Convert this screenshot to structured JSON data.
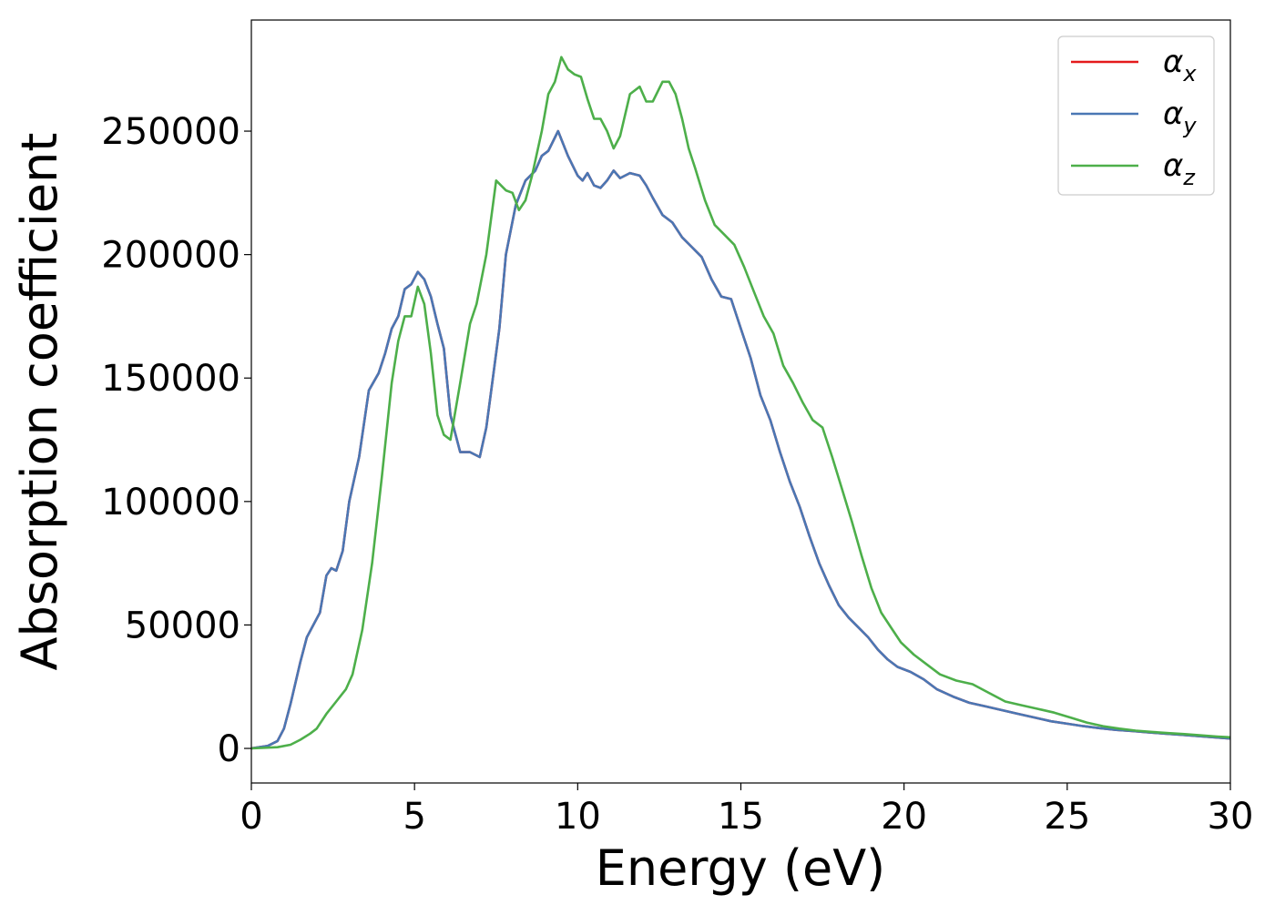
{
  "chart_data": {
    "type": "line",
    "title": "",
    "xlabel": "Energy (eV)",
    "ylabel": "Absorption coefficient",
    "xlim": [
      0,
      30
    ],
    "ylim": [
      -14000,
      295000
    ],
    "xticks": [
      0,
      5,
      10,
      15,
      20,
      25,
      30
    ],
    "xtick_labels": [
      "0",
      "5",
      "10",
      "15",
      "20",
      "25",
      "30"
    ],
    "yticks": [
      0,
      50000,
      100000,
      150000,
      200000,
      250000
    ],
    "ytick_labels": [
      "0",
      "50000",
      "100000",
      "150000",
      "200000",
      "250000"
    ],
    "grid": false,
    "legend_position": "top-right",
    "series": [
      {
        "name": "αx",
        "symbol": "α",
        "subscript": "x",
        "color": "#e41a1c",
        "x": [
          0,
          0.5,
          0.8,
          1.0,
          1.2,
          1.5,
          1.7,
          1.9,
          2.1,
          2.3,
          2.45,
          2.6,
          2.8,
          3.0,
          3.3,
          3.6,
          3.9,
          4.1,
          4.3,
          4.5,
          4.7,
          4.9,
          5.1,
          5.3,
          5.5,
          5.7,
          5.9,
          6.1,
          6.4,
          6.7,
          7.0,
          7.2,
          7.4,
          7.6,
          7.8,
          8.1,
          8.4,
          8.7,
          8.9,
          9.1,
          9.4,
          9.7,
          10.0,
          10.15,
          10.3,
          10.5,
          10.7,
          10.9,
          11.1,
          11.3,
          11.6,
          11.9,
          12.1,
          12.3,
          12.6,
          12.9,
          13.2,
          13.5,
          13.8,
          14.1,
          14.4,
          14.7,
          15.0,
          15.3,
          15.6,
          15.9,
          16.2,
          16.5,
          16.8,
          17.1,
          17.4,
          17.7,
          18.0,
          18.3,
          18.6,
          18.9,
          19.2,
          19.5,
          19.8,
          20.2,
          20.6,
          21.0,
          21.5,
          22.0,
          22.5,
          23.0,
          23.5,
          24.0,
          24.5,
          25.0,
          25.5,
          26.0,
          26.5,
          27.0,
          27.5,
          28.0,
          28.5,
          29.0,
          29.5,
          30.0
        ],
        "values": [
          0,
          1000,
          3000,
          8000,
          18000,
          35000,
          45000,
          50000,
          55000,
          70000,
          73000,
          72000,
          80000,
          100000,
          118000,
          145000,
          152000,
          160000,
          170000,
          175000,
          186000,
          188000,
          193000,
          190000,
          183000,
          172000,
          162000,
          135000,
          120000,
          120000,
          118000,
          130000,
          150000,
          170000,
          200000,
          220000,
          230000,
          234000,
          240000,
          242000,
          250000,
          240000,
          232000,
          230000,
          233000,
          228000,
          227000,
          230000,
          234000,
          231000,
          233000,
          232000,
          228000,
          223000,
          216000,
          213000,
          207000,
          203000,
          199000,
          190000,
          183000,
          182000,
          170000,
          158000,
          143000,
          133000,
          120000,
          108000,
          98000,
          86000,
          75000,
          66000,
          58000,
          53000,
          49000,
          45000,
          40000,
          36000,
          33000,
          31000,
          28000,
          24000,
          21000,
          18500,
          17000,
          15500,
          14000,
          12500,
          11000,
          10000,
          9000,
          8200,
          7500,
          7000,
          6500,
          6000,
          5500,
          5000,
          4500,
          4000
        ]
      },
      {
        "name": "αy",
        "symbol": "α",
        "subscript": "y",
        "color": "#4a77b4",
        "x": [
          0,
          0.5,
          0.8,
          1.0,
          1.2,
          1.5,
          1.7,
          1.9,
          2.1,
          2.3,
          2.45,
          2.6,
          2.8,
          3.0,
          3.3,
          3.6,
          3.9,
          4.1,
          4.3,
          4.5,
          4.7,
          4.9,
          5.1,
          5.3,
          5.5,
          5.7,
          5.9,
          6.1,
          6.4,
          6.7,
          7.0,
          7.2,
          7.4,
          7.6,
          7.8,
          8.1,
          8.4,
          8.7,
          8.9,
          9.1,
          9.4,
          9.7,
          10.0,
          10.15,
          10.3,
          10.5,
          10.7,
          10.9,
          11.1,
          11.3,
          11.6,
          11.9,
          12.1,
          12.3,
          12.6,
          12.9,
          13.2,
          13.5,
          13.8,
          14.1,
          14.4,
          14.7,
          15.0,
          15.3,
          15.6,
          15.9,
          16.2,
          16.5,
          16.8,
          17.1,
          17.4,
          17.7,
          18.0,
          18.3,
          18.6,
          18.9,
          19.2,
          19.5,
          19.8,
          20.2,
          20.6,
          21.0,
          21.5,
          22.0,
          22.5,
          23.0,
          23.5,
          24.0,
          24.5,
          25.0,
          25.5,
          26.0,
          26.5,
          27.0,
          27.5,
          28.0,
          28.5,
          29.0,
          29.5,
          30.0
        ],
        "values": [
          0,
          1000,
          3000,
          8000,
          18000,
          35000,
          45000,
          50000,
          55000,
          70000,
          73000,
          72000,
          80000,
          100000,
          118000,
          145000,
          152000,
          160000,
          170000,
          175000,
          186000,
          188000,
          193000,
          190000,
          183000,
          172000,
          162000,
          135000,
          120000,
          120000,
          118000,
          130000,
          150000,
          170000,
          200000,
          220000,
          230000,
          234000,
          240000,
          242000,
          250000,
          240000,
          232000,
          230000,
          233000,
          228000,
          227000,
          230000,
          234000,
          231000,
          233000,
          232000,
          228000,
          223000,
          216000,
          213000,
          207000,
          203000,
          199000,
          190000,
          183000,
          182000,
          170000,
          158000,
          143000,
          133000,
          120000,
          108000,
          98000,
          86000,
          75000,
          66000,
          58000,
          53000,
          49000,
          45000,
          40000,
          36000,
          33000,
          31000,
          28000,
          24000,
          21000,
          18500,
          17000,
          15500,
          14000,
          12500,
          11000,
          10000,
          9000,
          8200,
          7500,
          7000,
          6500,
          6000,
          5500,
          5000,
          4500,
          4000
        ]
      },
      {
        "name": "αz",
        "symbol": "α",
        "subscript": "z",
        "color": "#4daf4a",
        "x": [
          0,
          0.8,
          1.2,
          1.5,
          1.8,
          2.0,
          2.3,
          2.6,
          2.9,
          3.1,
          3.4,
          3.7,
          4.0,
          4.3,
          4.5,
          4.7,
          4.9,
          5.1,
          5.3,
          5.5,
          5.7,
          5.9,
          6.1,
          6.4,
          6.7,
          6.9,
          7.2,
          7.5,
          7.8,
          8.0,
          8.2,
          8.4,
          8.6,
          8.9,
          9.1,
          9.3,
          9.5,
          9.7,
          9.9,
          10.1,
          10.3,
          10.5,
          10.7,
          10.9,
          11.1,
          11.3,
          11.6,
          11.9,
          12.1,
          12.3,
          12.6,
          12.8,
          13.0,
          13.2,
          13.4,
          13.6,
          13.9,
          14.2,
          14.5,
          14.8,
          15.1,
          15.4,
          15.7,
          16.0,
          16.3,
          16.6,
          16.9,
          17.2,
          17.5,
          17.8,
          18.1,
          18.4,
          18.7,
          19.0,
          19.3,
          19.6,
          19.9,
          20.3,
          20.7,
          21.1,
          21.6,
          22.1,
          22.6,
          23.1,
          23.6,
          24.1,
          24.6,
          25.1,
          25.6,
          26.1,
          26.6,
          27.1,
          27.6,
          28.1,
          28.6,
          29.1,
          29.6,
          30.0
        ],
        "values": [
          0,
          500,
          1500,
          3500,
          6000,
          8000,
          14000,
          19000,
          24000,
          30000,
          48000,
          75000,
          110000,
          148000,
          165000,
          175000,
          175000,
          187000,
          180000,
          160000,
          135000,
          127000,
          125000,
          148000,
          172000,
          180000,
          200000,
          230000,
          226000,
          225000,
          218000,
          222000,
          232000,
          250000,
          265000,
          270000,
          280000,
          275000,
          273000,
          272000,
          263000,
          255000,
          255000,
          250000,
          243000,
          248000,
          265000,
          268000,
          262000,
          262000,
          270000,
          270000,
          265000,
          255000,
          243000,
          235000,
          222000,
          212000,
          208000,
          204000,
          195000,
          185000,
          175000,
          168000,
          155000,
          148000,
          140000,
          133000,
          130000,
          118000,
          105000,
          92000,
          78000,
          65000,
          55000,
          49000,
          43000,
          38000,
          34000,
          30000,
          27500,
          26000,
          22500,
          19000,
          17500,
          16000,
          14500,
          12500,
          10500,
          9000,
          8000,
          7200,
          6700,
          6200,
          5800,
          5300,
          4800,
          4500
        ]
      }
    ]
  }
}
